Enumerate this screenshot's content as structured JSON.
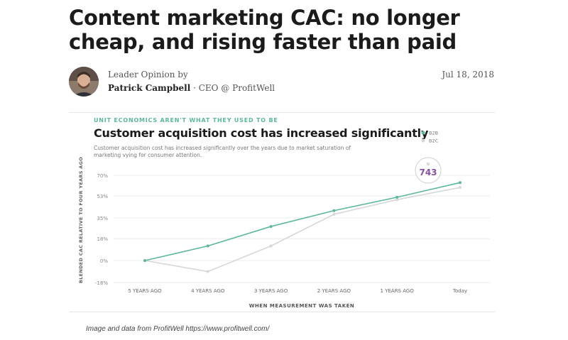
{
  "article": {
    "headline": "Content marketing CAC: no longer cheap, and rising faster than paid",
    "byline_label": "Leader Opinion by",
    "author": "Patrick Campbell",
    "author_role": "· CEO @ ProfitWell",
    "date": "Jul 18, 2018"
  },
  "caption": "Image and data from ProfitWell https://www.profitwell.com/",
  "chart_data": {
    "type": "line",
    "kicker": "UNIT ECONOMICS AREN'T WHAT THEY USED TO BE",
    "title": "Customer acquisition cost has increased significantly",
    "subtitle": "Customer acquisition cost has increased significantly over the years due to market saturation of marketing vying for consumer attention.",
    "xlabel": "WHEN MEASUREMENT WAS TAKEN",
    "ylabel": "BLENDED CAC RELATIVE TO FOUR YEARS AGO",
    "categories": [
      "5 YEARS AGO",
      "4 YEARS AGO",
      "3 YEARS AGO",
      "2 YEARS AGO",
      "1 YEARS AGO",
      "Today"
    ],
    "yticks": [
      "70%",
      "53%",
      "35%",
      "18%",
      "0%",
      "-18%"
    ],
    "yticks_values": [
      70,
      53,
      35,
      18,
      0,
      -18
    ],
    "ylim": [
      -18,
      70
    ],
    "grid": true,
    "legend_position": "top-right",
    "series": [
      {
        "name": "B2B",
        "values": [
          0,
          12,
          28,
          41,
          52,
          64
        ],
        "color": "#5cb89a"
      },
      {
        "name": "B2C",
        "values": [
          0,
          -9,
          12,
          38,
          50,
          60
        ],
        "color": "#d4d8d9"
      }
    ],
    "annotation": {
      "label": "N",
      "value": "743",
      "color": "#8a4fa3"
    }
  }
}
